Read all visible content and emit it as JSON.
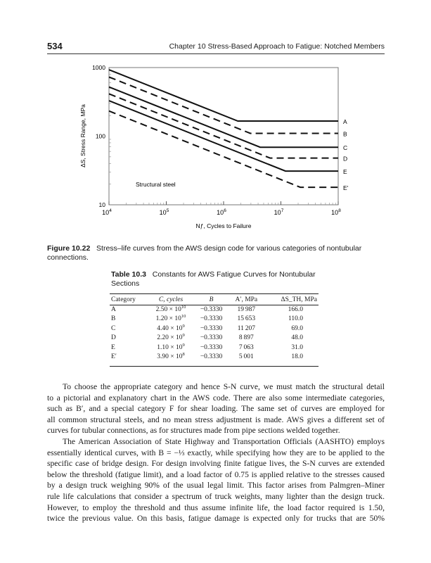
{
  "header": {
    "page_number": "534",
    "running_title": "Chapter 10   Stress-Based Approach to Fatigue: Notched Members"
  },
  "figure": {
    "caption_label": "Figure 10.22",
    "caption_text": "Stress–life curves from the AWS design code for various categories of nontubular connections."
  },
  "chart_data": {
    "type": "line",
    "xlabel": "Nƒ, Cycles to Failure",
    "ylabel": "ΔS, Stress Range, MPa",
    "xscale": "log",
    "yscale": "log",
    "xlim": [
      10000,
      100000000
    ],
    "ylim": [
      10,
      1000
    ],
    "x_ticks": [
      {
        "base": "10",
        "exp": "4"
      },
      {
        "base": "10",
        "exp": "5"
      },
      {
        "base": "10",
        "exp": "6"
      },
      {
        "base": "10",
        "exp": "7"
      },
      {
        "base": "10",
        "exp": "8"
      }
    ],
    "y_ticks": [
      "10",
      "100",
      "1000"
    ],
    "annotation": "Structural steel",
    "grid": false,
    "series": [
      {
        "name": "A",
        "A_prime": 19987,
        "B": -0.333,
        "threshold": 166,
        "style": "solid"
      },
      {
        "name": "B",
        "A_prime": 15653,
        "B": -0.333,
        "threshold": 110,
        "style": "dashed"
      },
      {
        "name": "C",
        "A_prime": 11207,
        "B": -0.333,
        "threshold": 69,
        "style": "solid"
      },
      {
        "name": "D",
        "A_prime": 8897,
        "B": -0.333,
        "threshold": 48,
        "style": "dashed"
      },
      {
        "name": "E",
        "A_prime": 7063,
        "B": -0.333,
        "threshold": 31,
        "style": "solid"
      },
      {
        "name": "E'",
        "A_prime": 5001,
        "B": -0.333,
        "threshold": 18,
        "style": "dashed"
      }
    ]
  },
  "table": {
    "label": "Table 10.3",
    "title": "Constants for AWS Fatigue Curves for Nontubular Sections",
    "headers": [
      "Category",
      "C, cycles",
      "B",
      "A′, MPa",
      "ΔS_TH, MPa"
    ],
    "rows": [
      {
        "category": "A",
        "c_mant": "2.50",
        "c_exp": "10",
        "b": "−0.3330",
        "a": "19 987",
        "s": "166.0"
      },
      {
        "category": "B",
        "c_mant": "1.20",
        "c_exp": "10",
        "b": "−0.3330",
        "a": "15 653",
        "s": "110.0"
      },
      {
        "category": "C",
        "c_mant": "4.40",
        "c_exp": "9",
        "b": "−0.3330",
        "a": "11 207",
        "s": "69.0"
      },
      {
        "category": "D",
        "c_mant": "2.20",
        "c_exp": "9",
        "b": "−0.3330",
        "a": "8 897",
        "s": "48.0"
      },
      {
        "category": "E",
        "c_mant": "1.10",
        "c_exp": "9",
        "b": "−0.3330",
        "a": "7 063",
        "s": "31.0"
      },
      {
        "category": "E′",
        "c_mant": "3.90",
        "c_exp": "8",
        "b": "−0.3330",
        "a": "5 001",
        "s": "18.0"
      }
    ]
  },
  "body": {
    "paragraphs": [
      [
        "To choose the appropriate category and hence S-N curve, we must match the structural detail",
        "to a pictorial and explanatory chart in the AWS code. There are also some intermediate categories,",
        "such as B′, and a special category F for shear loading. The same set of curves are employed for",
        "all common structural steels, and no mean stress adjustment is made. AWS gives a different set of",
        "curves for tubular connections, as for structures made from pipe sections welded together."
      ],
      [
        "The American Association of State Highway and Transportation Officials (AASHTO) employs",
        "essentially identical curves, with B = −⅓ exactly, while specifying how they are to be applied to the",
        "specific case of bridge design. For design involving finite fatigue lives, the S-N curves are extended",
        "below the threshold (fatigue limit), and a load factor of 0.75 is applied relative to the stresses caused",
        "by a design truck weighing 90% of the usual legal limit. This factor arises from Palmgren–Miner",
        "rule life calculations that consider a spectrum of truck weights, many lighter than the design truck.",
        "However, to employ the threshold and thus assume infinite life, the load factor required is 1.50,",
        "twice the previous value. On this basis, fatigue damage is expected only for trucks that are 50%"
      ]
    ]
  }
}
